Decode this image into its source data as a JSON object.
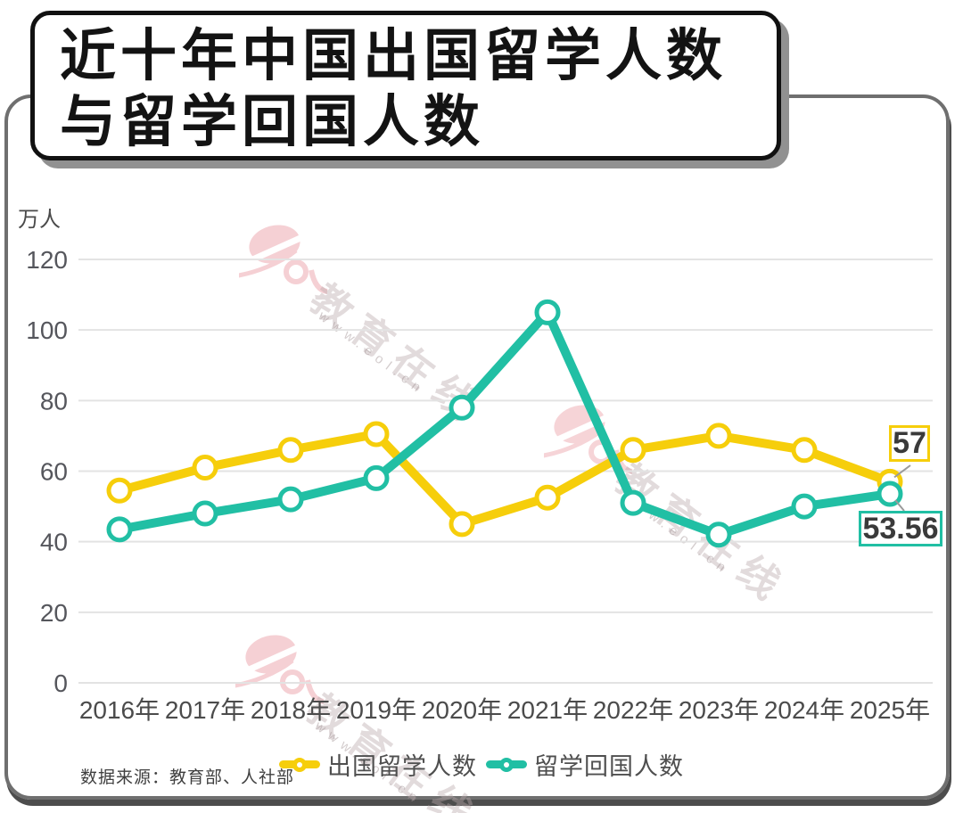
{
  "title": {
    "line1": "近十年中国出国留学人数",
    "line2": "与留学回国人数"
  },
  "chart_data": {
    "type": "line",
    "title": "近十年中国出国留学人数与留学回国人数",
    "ylabel_unit": "万人",
    "categories": [
      "2016年",
      "2017年",
      "2018年",
      "2019年",
      "2020年",
      "2021年",
      "2022年",
      "2023年",
      "2024年",
      "2025年"
    ],
    "series": [
      {
        "name": "出国留学人数",
        "color": "#F6CE0B",
        "values": [
          54.5,
          61,
          66,
          70.5,
          45,
          52.5,
          66,
          70,
          66,
          57
        ],
        "end_label": "57"
      },
      {
        "name": "留学回国人数",
        "color": "#21BFA4",
        "values": [
          43.5,
          48,
          52,
          58,
          78,
          105,
          51,
          42,
          50,
          53.56
        ],
        "end_label": "53.56"
      }
    ],
    "ylim": [
      0,
      120
    ],
    "yticks": [
      0,
      20,
      40,
      60,
      80,
      100,
      120
    ],
    "grid": true,
    "legend_position": "bottom"
  },
  "source_note": "数据来源：教育部、人社部",
  "watermark": {
    "brand": "教育在线",
    "url": "www.eol.cn"
  },
  "colors": {
    "grid": "#e3e3e3",
    "tick_text": "#55565c",
    "axis_text": "#4b4b4b",
    "connector": "#9a9a9a",
    "frame": "#6f6f6f",
    "label_text": "#3a3a3a"
  }
}
